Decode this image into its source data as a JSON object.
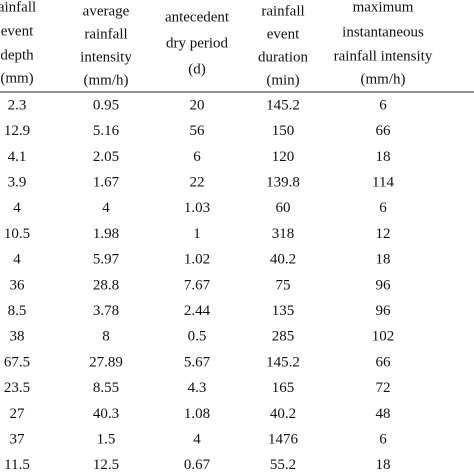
{
  "table": {
    "columns": [
      {
        "lines": [
          "ainfall",
          "event",
          "depth",
          "(mm)"
        ]
      },
      {
        "lines": [
          "average",
          "rainfall",
          "intensity",
          "(mm/h)"
        ]
      },
      {
        "lines": [
          "antecedent",
          "dry period",
          "(d)"
        ]
      },
      {
        "lines": [
          "rainfall",
          "event",
          "duration",
          "(min)"
        ]
      },
      {
        "lines": [
          "maximum",
          "instantaneous",
          "rainfall intensity",
          "(mm/h)"
        ]
      }
    ],
    "rows": [
      [
        "2.3",
        "0.95",
        "20",
        "145.2",
        "6"
      ],
      [
        "12.9",
        "5.16",
        "56",
        "150",
        "66"
      ],
      [
        "4.1",
        "2.05",
        "6",
        "120",
        "18"
      ],
      [
        "3.9",
        "1.67",
        "22",
        "139.8",
        "114"
      ],
      [
        "4",
        "4",
        "1.03",
        "60",
        "6"
      ],
      [
        "10.5",
        "1.98",
        "1",
        "318",
        "12"
      ],
      [
        "4",
        "5.97",
        "1.02",
        "40.2",
        "18"
      ],
      [
        "36",
        "28.8",
        "7.67",
        "75",
        "96"
      ],
      [
        "8.5",
        "3.78",
        "2.44",
        "135",
        "96"
      ],
      [
        "38",
        "8",
        "0.5",
        "285",
        "102"
      ],
      [
        "67.5",
        "27.89",
        "5.67",
        "145.2",
        "66"
      ],
      [
        "23.5",
        "8.55",
        "4.3",
        "165",
        "72"
      ],
      [
        "27",
        "40.3",
        "1.08",
        "40.2",
        "48"
      ],
      [
        "37",
        "1.5",
        "4",
        "1476",
        "6"
      ],
      [
        "11.5",
        "12.5",
        "0.67",
        "55.2",
        "18"
      ]
    ]
  }
}
